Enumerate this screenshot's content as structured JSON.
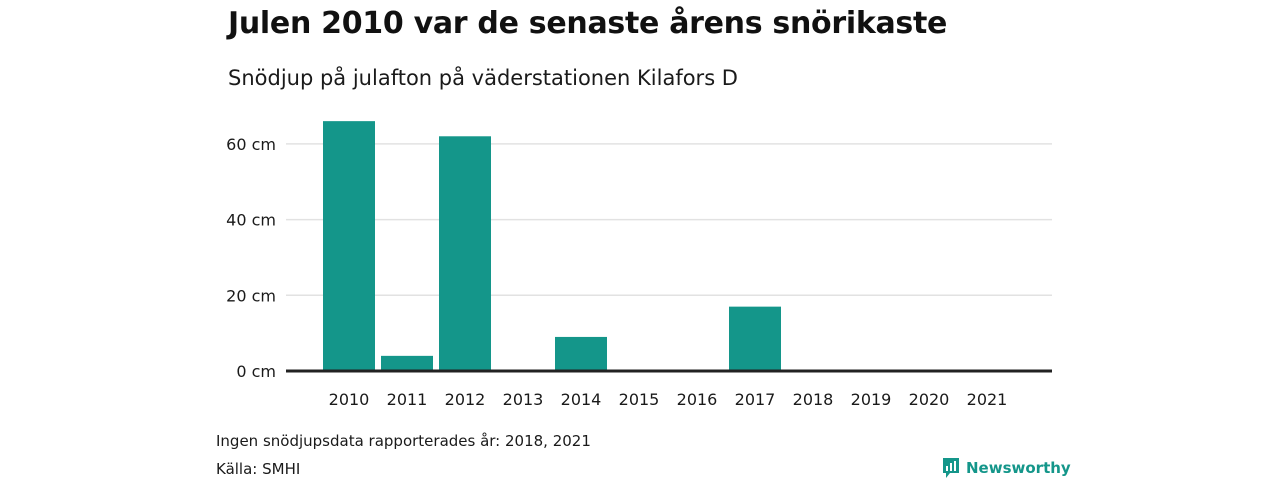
{
  "colors": {
    "bar": "#14968a",
    "grid": "#e2e2e2",
    "axis": "#222222",
    "brand": "#14968a"
  },
  "footer": {
    "note": "Ingen snödjupsdata rapporterades år: 2018, 2021",
    "source": "Källa: SMHI",
    "brand_name": "Newsworthy",
    "brand_icon": "newsworthy-logo-icon"
  },
  "chart_data": {
    "type": "bar",
    "title": "Julen 2010 var de senaste årens snörikaste",
    "subtitle": "Snödjup på julafton på väderstationen Kilafors D",
    "categories": [
      "2010",
      "2011",
      "2012",
      "2013",
      "2014",
      "2015",
      "2016",
      "2017",
      "2018",
      "2019",
      "2020",
      "2021"
    ],
    "values": [
      66,
      4,
      62,
      0,
      9,
      0,
      0,
      17,
      null,
      0,
      0,
      null
    ],
    "ylim": [
      0,
      70
    ],
    "yticks": [
      0,
      20,
      40,
      60
    ],
    "ytick_labels": [
      "0 cm",
      "20 cm",
      "40 cm",
      "60 cm"
    ],
    "unit": "cm",
    "grid": true
  }
}
